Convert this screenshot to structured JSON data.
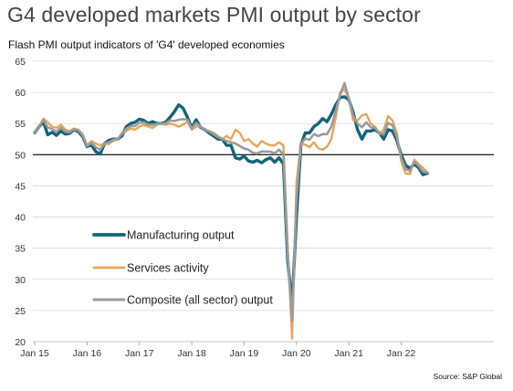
{
  "title": "G4 developed markets PMI output by sector",
  "subtitle": "Flash PMI output indicators of 'G4' developed economies",
  "source": "Source: S&P Global",
  "chart_data": {
    "type": "line",
    "ylim": [
      20,
      65
    ],
    "yticks": [
      20,
      25,
      30,
      35,
      40,
      45,
      50,
      55,
      60,
      65
    ],
    "reference_line": 50,
    "grid": "horizontal",
    "legend_position": "center-left",
    "x_tick_labels": [
      "Jan 15",
      "Jan 16",
      "Jan 17",
      "Jan 18",
      "Jan 19",
      "Jan 20",
      "Jan 21",
      "Jan 22"
    ],
    "x_start": "Jan 15",
    "series": [
      {
        "name": "Manufacturing output",
        "color": "#12647a",
        "width": 3.4,
        "values": [
          53.5,
          54.5,
          55.3,
          53.2,
          53.6,
          53.1,
          53.8,
          53.3,
          53.4,
          54.0,
          53.7,
          52.9,
          51.3,
          51.6,
          50.5,
          50.1,
          51.8,
          52.3,
          52.5,
          52.5,
          53.0,
          54.5,
          55.0,
          55.2,
          55.7,
          55.5,
          55.0,
          55.3,
          55.0,
          55.0,
          55.2,
          56.0,
          56.9,
          58.0,
          57.5,
          56.0,
          54.3,
          55.6,
          54.4,
          54.0,
          53.5,
          53.0,
          52.5,
          52.5,
          51.5,
          51.5,
          49.5,
          49.3,
          49.8,
          49.0,
          48.8,
          49.1,
          48.7,
          49.2,
          49.5,
          48.8,
          49.5,
          48.5,
          33.0,
          26.0,
          40.0,
          51.5,
          53.5,
          53.5,
          54.5,
          55.0,
          55.8,
          55.3,
          56.5,
          58.0,
          59.2,
          59.3,
          58.8,
          56.8,
          54.0,
          52.5,
          53.8,
          53.8,
          54.0,
          53.5,
          52.5,
          54.0,
          53.8,
          52.3,
          50.0,
          48.3,
          47.8,
          48.5,
          47.9,
          46.8,
          47.0
        ],
        "name_bind": "chart_data.series.0.name"
      },
      {
        "name": "Services activity",
        "color": "#e6a65a",
        "width": 2.4,
        "values": [
          53.5,
          54.5,
          55.8,
          55.2,
          54.5,
          54.3,
          54.8,
          54.0,
          53.8,
          54.2,
          54.0,
          53.3,
          51.5,
          52.2,
          51.8,
          51.5,
          51.8,
          51.7,
          52.2,
          52.5,
          53.5,
          53.8,
          54.2,
          54.0,
          54.5,
          54.8,
          54.5,
          54.3,
          54.8,
          55.0,
          54.8,
          55.0,
          54.8,
          54.5,
          54.8,
          55.3,
          54.0,
          54.5,
          54.5,
          54.0,
          53.8,
          53.5,
          53.0,
          52.5,
          53.0,
          52.5,
          54.0,
          53.5,
          52.2,
          52.5,
          51.8,
          51.3,
          52.2,
          51.8,
          51.5,
          51.5,
          52.0,
          51.5,
          35.0,
          20.5,
          45.5,
          51.8,
          51.6,
          51.2,
          52.0,
          51.0,
          50.8,
          51.3,
          52.5,
          56.0,
          60.0,
          60.5,
          59.0,
          55.5,
          55.5,
          56.3,
          56.5,
          55.0,
          54.5,
          53.3,
          54.0,
          56.2,
          55.5,
          53.5,
          49.0,
          47.0,
          46.9,
          49.2,
          48.5,
          47.9,
          47.2
        ],
        "name_bind": "chart_data.series.1.name"
      },
      {
        "name": "Composite (all sector) output",
        "color": "#9b9b9b",
        "width": 2.6,
        "values": [
          53.5,
          54.5,
          55.6,
          54.4,
          54.1,
          53.7,
          54.3,
          53.7,
          53.6,
          54.1,
          53.9,
          53.1,
          51.4,
          51.9,
          51.2,
          50.8,
          51.8,
          52.0,
          52.4,
          52.5,
          53.3,
          54.2,
          54.6,
          54.6,
          55.1,
          55.2,
          54.8,
          54.8,
          54.9,
          55.0,
          55.0,
          55.5,
          55.4,
          55.6,
          55.7,
          55.6,
          54.2,
          55.1,
          54.5,
          54.0,
          53.7,
          53.3,
          52.8,
          52.5,
          52.2,
          52.0,
          51.8,
          51.4,
          51.0,
          50.8,
          50.3,
          50.2,
          50.5,
          50.5,
          50.5,
          50.2,
          50.8,
          50.0,
          34.0,
          23.3,
          42.8,
          51.7,
          52.6,
          52.4,
          53.3,
          53.0,
          53.3,
          53.3,
          54.5,
          57.0,
          59.6,
          61.5,
          59.0,
          56.3,
          55.0,
          54.4,
          55.2,
          54.4,
          54.3,
          53.4,
          53.3,
          55.1,
          54.7,
          52.9,
          49.5,
          47.7,
          47.4,
          48.9,
          48.2,
          47.3,
          47.1
        ],
        "name_bind": "chart_data.series.2.name"
      }
    ]
  }
}
